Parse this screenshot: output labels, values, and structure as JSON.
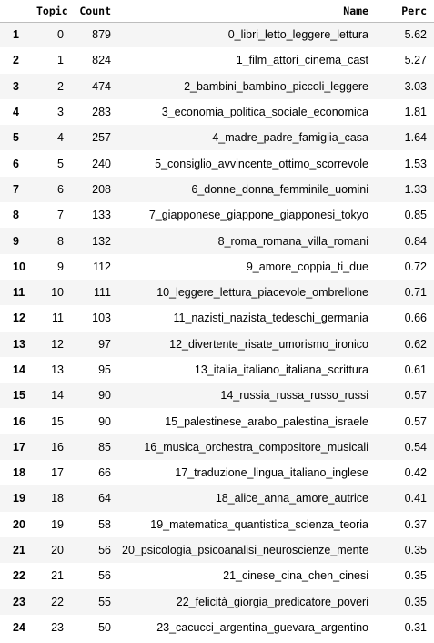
{
  "table": {
    "columns": {
      "index": "",
      "topic": "Topic",
      "count": "Count",
      "name": "Name",
      "perc": "Perc"
    },
    "rows": [
      {
        "index": "1",
        "topic": "0",
        "count": "879",
        "name": "0_libri_letto_leggere_lettura",
        "perc": "5.62"
      },
      {
        "index": "2",
        "topic": "1",
        "count": "824",
        "name": "1_film_attori_cinema_cast",
        "perc": "5.27"
      },
      {
        "index": "3",
        "topic": "2",
        "count": "474",
        "name": "2_bambini_bambino_piccoli_leggere",
        "perc": "3.03"
      },
      {
        "index": "4",
        "topic": "3",
        "count": "283",
        "name": "3_economia_politica_sociale_economica",
        "perc": "1.81"
      },
      {
        "index": "5",
        "topic": "4",
        "count": "257",
        "name": "4_madre_padre_famiglia_casa",
        "perc": "1.64"
      },
      {
        "index": "6",
        "topic": "5",
        "count": "240",
        "name": "5_consiglio_avvincente_ottimo_scorrevole",
        "perc": "1.53"
      },
      {
        "index": "7",
        "topic": "6",
        "count": "208",
        "name": "6_donne_donna_femminile_uomini",
        "perc": "1.33"
      },
      {
        "index": "8",
        "topic": "7",
        "count": "133",
        "name": "7_giapponese_giappone_giapponesi_tokyo",
        "perc": "0.85"
      },
      {
        "index": "9",
        "topic": "8",
        "count": "132",
        "name": "8_roma_romana_villa_romani",
        "perc": "0.84"
      },
      {
        "index": "10",
        "topic": "9",
        "count": "112",
        "name": "9_amore_coppia_ti_due",
        "perc": "0.72"
      },
      {
        "index": "11",
        "topic": "10",
        "count": "111",
        "name": "10_leggere_lettura_piacevole_ombrellone",
        "perc": "0.71"
      },
      {
        "index": "12",
        "topic": "11",
        "count": "103",
        "name": "11_nazisti_nazista_tedeschi_germania",
        "perc": "0.66"
      },
      {
        "index": "13",
        "topic": "12",
        "count": "97",
        "name": "12_divertente_risate_umorismo_ironico",
        "perc": "0.62"
      },
      {
        "index": "14",
        "topic": "13",
        "count": "95",
        "name": "13_italia_italiano_italiana_scrittura",
        "perc": "0.61"
      },
      {
        "index": "15",
        "topic": "14",
        "count": "90",
        "name": "14_russia_russa_russo_russi",
        "perc": "0.57"
      },
      {
        "index": "16",
        "topic": "15",
        "count": "90",
        "name": "15_palestinese_arabo_palestina_israele",
        "perc": "0.57"
      },
      {
        "index": "17",
        "topic": "16",
        "count": "85",
        "name": "16_musica_orchestra_compositore_musicali",
        "perc": "0.54"
      },
      {
        "index": "18",
        "topic": "17",
        "count": "66",
        "name": "17_traduzione_lingua_italiano_inglese",
        "perc": "0.42"
      },
      {
        "index": "19",
        "topic": "18",
        "count": "64",
        "name": "18_alice_anna_amore_autrice",
        "perc": "0.41"
      },
      {
        "index": "20",
        "topic": "19",
        "count": "58",
        "name": "19_matematica_quantistica_scienza_teoria",
        "perc": "0.37"
      },
      {
        "index": "21",
        "topic": "20",
        "count": "56",
        "name": "20_psicologia_psicoanalisi_neuroscienze_mente",
        "perc": "0.35"
      },
      {
        "index": "22",
        "topic": "21",
        "count": "56",
        "name": "21_cinese_cina_chen_cinesi",
        "perc": "0.35"
      },
      {
        "index": "23",
        "topic": "22",
        "count": "55",
        "name": "22_felicità_giorgia_predicatore_poveri",
        "perc": "0.35"
      },
      {
        "index": "24",
        "topic": "23",
        "count": "50",
        "name": "23_cacucci_argentina_guevara_argentino",
        "perc": "0.31"
      }
    ]
  }
}
